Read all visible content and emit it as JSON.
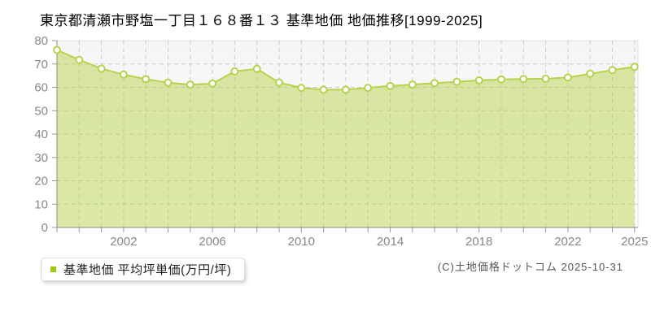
{
  "title": "東京都清瀬市野塩一丁目１６８番１３ 基準地価 地価推移[1999-2025]",
  "legend": {
    "label": "基準地価 平均坪単価(万円/坪)"
  },
  "copyright": "(C)土地価格ドットコム 2025-10-31",
  "chart_data": {
    "type": "area",
    "title": "東京都清瀬市野塩一丁目１６８番１３ 基準地価 地価推移[1999-2025]",
    "series_name": "基準地価 平均坪単価",
    "ylabel": "万円/坪",
    "xlabel": "",
    "categories": [
      1999,
      2000,
      2001,
      2002,
      2003,
      2004,
      2005,
      2006,
      2007,
      2008,
      2009,
      2010,
      2011,
      2012,
      2013,
      2014,
      2015,
      2016,
      2017,
      2018,
      2019,
      2020,
      2021,
      2022,
      2023,
      2024,
      2025
    ],
    "values": [
      76.0,
      71.8,
      68.0,
      65.5,
      63.5,
      62.0,
      61.2,
      61.6,
      66.8,
      67.9,
      62.1,
      59.8,
      59.0,
      59.0,
      59.8,
      60.6,
      61.2,
      61.8,
      62.4,
      63.0,
      63.4,
      63.6,
      63.7,
      64.2,
      65.8,
      67.4,
      68.8
    ],
    "ylim": [
      0,
      80
    ],
    "y_ticks": [
      0,
      10,
      20,
      30,
      40,
      50,
      60,
      70,
      80
    ],
    "x_tick_labels": [
      "2002",
      "2006",
      "2010",
      "2014",
      "2018",
      "2022",
      "2025"
    ],
    "grid": true,
    "legend_position": "bottom-left",
    "colors": {
      "line": "#b7d24e",
      "fill": "rgba(183,210,78,0.5)",
      "marker_fill": "#ffffff",
      "marker_stroke": "#b7d24e",
      "grid": "#cccccc",
      "border": "#e0e0e0",
      "axis": "#8a8a8a",
      "tick": "#999999",
      "tick_label": "#888888",
      "plot_bg_top": "#f5f5f5",
      "plot_bg_bottom": "#ffffff",
      "legend_swatch": "#a0c814"
    }
  }
}
